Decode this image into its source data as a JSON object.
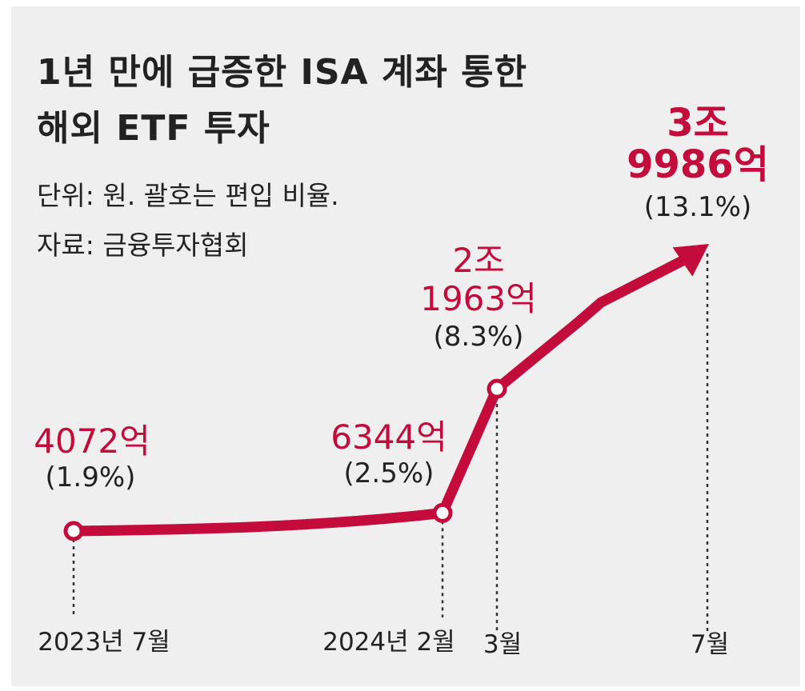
{
  "chart_data": {
    "type": "line",
    "title": [
      "1년 만에 급증한 ISA 계좌 통한",
      "해외 ETF 투자"
    ],
    "notes": [
      "단위: 원. 괄호는 편입 비율.",
      "자료: 금융투자협회"
    ],
    "categories": [
      "2023년 7월",
      "2024년 2월",
      "3월",
      "7월"
    ],
    "values": [
      4072,
      6344,
      21963,
      39986
    ],
    "value_unit": "억 원",
    "point_labels": [
      {
        "lines": [
          "4072억"
        ],
        "pct": "(1.9%)",
        "bold": false
      },
      {
        "lines": [
          "6344억"
        ],
        "pct": "(2.5%)",
        "bold": false
      },
      {
        "lines": [
          "2조",
          "1963억"
        ],
        "pct": "(8.3%)",
        "bold": false
      },
      {
        "lines": [
          "3조",
          "9986억"
        ],
        "pct": "(13.1%)",
        "bold": true
      }
    ],
    "percentages": [
      1.9,
      2.5,
      8.3,
      13.1
    ],
    "line_color": "#c40c3c"
  }
}
